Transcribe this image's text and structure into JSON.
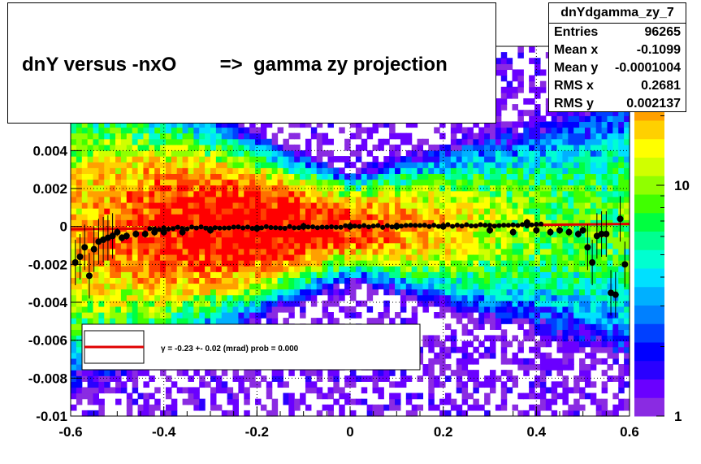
{
  "title": "dnY versus -nxO        =>  gamma zy projection",
  "stats": {
    "name": "dnYdgamma_zy_7",
    "rows": [
      {
        "key": "Entries",
        "value": "96265"
      },
      {
        "key": "Mean x",
        "value": "-0.1099"
      },
      {
        "key": "Mean y",
        "value": "-0.0001004"
      },
      {
        "key": "RMS x",
        "value": "0.2681"
      },
      {
        "key": "RMS y",
        "value": "0.002137"
      }
    ]
  },
  "fit_legend": "γ =  -0.23 +- 0.02 (mrad) prob = 0.000",
  "colors": {
    "fit_line": "#e00000",
    "markers": "#000000",
    "frame": "#000000"
  },
  "chart_data": {
    "type": "heatmap",
    "title": "dnY versus -nxO        =>  gamma zy projection",
    "xlabel": "",
    "ylabel": "",
    "xlim": [
      -0.6,
      0.6
    ],
    "ylim": [
      -0.01,
      0.0095
    ],
    "x_ticks": [
      "-0.6",
      "-0.4",
      "-0.2",
      "0",
      "0.2",
      "0.4",
      "0.6"
    ],
    "y_ticks": [
      "-0.01",
      "-0.008",
      "-0.006",
      "-0.004",
      "-0.002",
      "0",
      "0.002",
      "0.004"
    ],
    "z_scale": "log",
    "z_ticks": [
      "1",
      "10"
    ],
    "z_tick_values": [
      1,
      10
    ],
    "z_max": 40,
    "profile": {
      "x": [
        -0.59,
        -0.58,
        -0.57,
        -0.56,
        -0.55,
        -0.54,
        -0.53,
        -0.52,
        -0.51,
        -0.5,
        -0.49,
        -0.48,
        -0.46,
        -0.44,
        -0.42,
        -0.4,
        -0.36,
        -0.3,
        -0.2,
        -0.1,
        0.0,
        0.1,
        0.2,
        0.3,
        0.35,
        0.38,
        0.4,
        0.43,
        0.45,
        0.47,
        0.49,
        0.5,
        0.51,
        0.52,
        0.53,
        0.54,
        0.55,
        0.56,
        0.57,
        0.58,
        0.59
      ],
      "y": [
        -0.0019,
        -0.0016,
        -0.0011,
        -0.0026,
        -0.0012,
        -0.0008,
        -0.0007,
        -0.0006,
        -0.0005,
        -0.0003,
        -0.0006,
        -0.0005,
        -0.0004,
        -0.0004,
        -0.0003,
        -0.0003,
        -0.0003,
        -0.0002,
        -0.0001,
        0.0,
        0.0,
        0.0,
        0.0,
        -0.0002,
        -0.0003,
        0.0002,
        -0.0002,
        -0.0003,
        -0.0002,
        -0.0003,
        -0.0004,
        -0.0002,
        -0.0011,
        -0.0019,
        -0.0005,
        -0.0004,
        -0.0004,
        -0.0035,
        -0.0036,
        0.0004,
        -0.002
      ]
    },
    "fit": {
      "x": [
        -0.6,
        0.6
      ],
      "y": [
        -0.00015,
        0.00013
      ]
    }
  }
}
